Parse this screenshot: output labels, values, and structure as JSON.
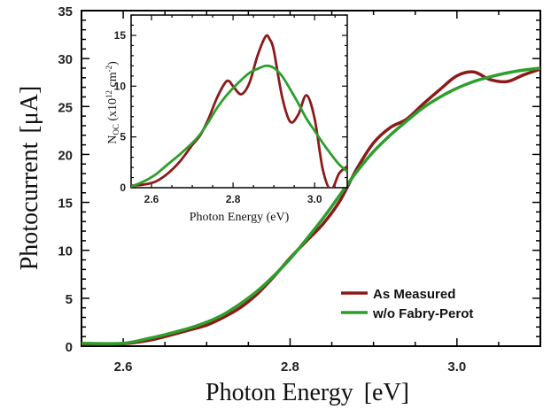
{
  "chart_data": [
    {
      "type": "line",
      "xlabel": "Photon Energy",
      "xunit": "[eV]",
      "ylabel": "Photocurrent",
      "yunit": "[μA]",
      "xlim": [
        2.55,
        3.1
      ],
      "ylim": [
        0,
        35
      ],
      "xticks": [
        2.6,
        2.8,
        3.0
      ],
      "xtick_labels": [
        "2.6",
        "2.8",
        "3.0"
      ],
      "yticks": [
        0,
        5,
        10,
        15,
        20,
        25,
        30,
        35
      ],
      "ytick_labels": [
        "0",
        "5",
        "10",
        "15",
        "20",
        "25",
        "30",
        "35"
      ],
      "legend_position": "bottom-right",
      "series": [
        {
          "name": "As Measured",
          "color": "#8b1a1a",
          "x": [
            2.55,
            2.6,
            2.63,
            2.65,
            2.68,
            2.7,
            2.72,
            2.74,
            2.76,
            2.78,
            2.8,
            2.82,
            2.84,
            2.86,
            2.88,
            2.9,
            2.92,
            2.94,
            2.96,
            2.98,
            3.0,
            3.02,
            3.04,
            3.06,
            3.08,
            3.1
          ],
          "y": [
            0.2,
            0.25,
            0.6,
            1.0,
            1.7,
            2.2,
            3.0,
            4.0,
            5.4,
            7.2,
            9.2,
            11.0,
            12.8,
            15.2,
            18.5,
            21.2,
            22.8,
            23.7,
            25.3,
            26.8,
            28.2,
            28.6,
            27.8,
            27.6,
            28.3,
            28.9
          ]
        },
        {
          "name": "w/o Fabry-Perot",
          "color": "#2e9e2e",
          "x": [
            2.55,
            2.6,
            2.63,
            2.65,
            2.68,
            2.7,
            2.72,
            2.74,
            2.76,
            2.78,
            2.8,
            2.82,
            2.84,
            2.86,
            2.88,
            2.9,
            2.92,
            2.94,
            2.96,
            2.98,
            3.0,
            3.02,
            3.04,
            3.06,
            3.08,
            3.1
          ],
          "y": [
            0.3,
            0.3,
            0.8,
            1.2,
            1.9,
            2.5,
            3.3,
            4.4,
            5.7,
            7.3,
            9.1,
            11.2,
            13.4,
            15.8,
            18.2,
            20.3,
            22.0,
            23.5,
            24.9,
            26.0,
            26.9,
            27.6,
            28.1,
            28.5,
            28.8,
            29.0
          ]
        }
      ]
    },
    {
      "type": "line",
      "xlabel": "Photon Energy (eV)",
      "ylabel_main": "N",
      "ylabel_sub": "OC",
      "ylabel_mid": " (x10",
      "ylabel_sup1": "12",
      "ylabel_unit": " cm",
      "ylabel_sup2": "-2",
      "ylabel_end": ")",
      "xlim": [
        2.55,
        3.08
      ],
      "ylim": [
        0,
        17
      ],
      "xticks": [
        2.6,
        2.8,
        3.0
      ],
      "xtick_labels": [
        "2.6",
        "2.8",
        "3.0"
      ],
      "yticks": [
        0,
        5,
        10,
        15
      ],
      "ytick_labels": [
        "0",
        "5",
        "10",
        "15"
      ],
      "series": [
        {
          "color": "#8b1a1a",
          "x": [
            2.55,
            2.58,
            2.61,
            2.64,
            2.67,
            2.7,
            2.72,
            2.74,
            2.76,
            2.78,
            2.79,
            2.8,
            2.82,
            2.84,
            2.86,
            2.88,
            2.89,
            2.9,
            2.92,
            2.94,
            2.96,
            2.98,
            3.0,
            3.02,
            3.04,
            3.06,
            3.08
          ],
          "y": [
            0.2,
            0.3,
            0.6,
            1.4,
            2.6,
            4.2,
            5.2,
            6.8,
            8.8,
            10.3,
            10.5,
            10.0,
            9.2,
            10.3,
            13.0,
            14.9,
            14.6,
            13.5,
            9.0,
            6.5,
            7.2,
            9.1,
            6.8,
            1.8,
            -0.2,
            1.4,
            2.1
          ]
        },
        {
          "color": "#2e9e2e",
          "x": [
            2.55,
            2.58,
            2.61,
            2.64,
            2.67,
            2.7,
            2.72,
            2.74,
            2.76,
            2.78,
            2.8,
            2.82,
            2.84,
            2.86,
            2.88,
            2.9,
            2.92,
            2.94,
            2.96,
            2.98,
            3.0,
            3.02,
            3.04,
            3.06,
            3.08
          ],
          "y": [
            0.1,
            0.6,
            1.3,
            2.3,
            3.3,
            4.4,
            5.3,
            6.5,
            7.8,
            8.9,
            9.8,
            10.6,
            11.3,
            11.7,
            12.0,
            11.8,
            11.0,
            9.7,
            8.3,
            6.8,
            5.6,
            4.4,
            3.3,
            2.3,
            1.6
          ]
        }
      ]
    }
  ]
}
